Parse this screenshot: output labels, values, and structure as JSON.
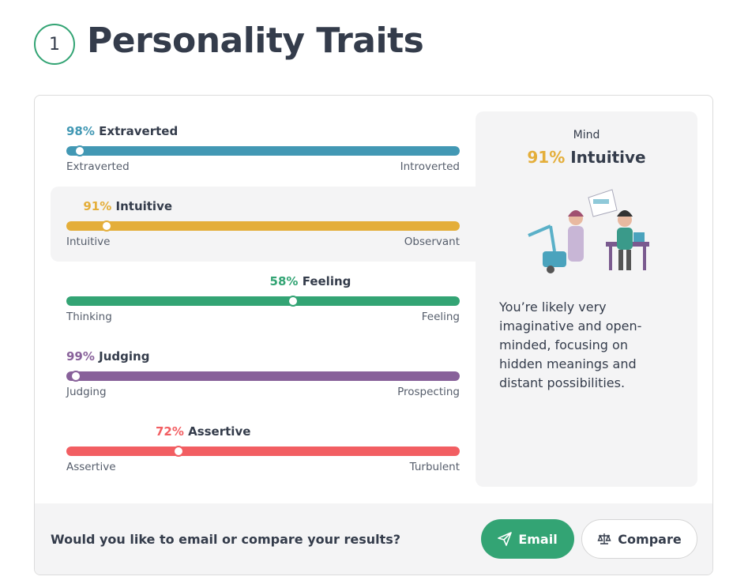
{
  "header": {
    "step": "1",
    "title": "Personality Traits"
  },
  "traits": [
    {
      "name": "Extraverted",
      "value": 98,
      "value_label": "98%",
      "color": "#4298b4",
      "left": "Extraverted",
      "right": "Introverted"
    },
    {
      "name": "Intuitive",
      "value": 91,
      "value_label": "91%",
      "color": "#e4ae3a",
      "left": "Intuitive",
      "right": "Observant"
    },
    {
      "name": "Feeling",
      "value": 58,
      "value_label": "58%",
      "color": "#33a474",
      "left": "Thinking",
      "right": "Feeling"
    },
    {
      "name": "Judging",
      "value": 99,
      "value_label": "99%",
      "color": "#88619a",
      "left": "Judging",
      "right": "Prospecting"
    },
    {
      "name": "Assertive",
      "value": 72,
      "value_label": "72%",
      "color": "#f25e62",
      "left": "Assertive",
      "right": "Turbulent"
    }
  ],
  "panel": {
    "heading": "Mind",
    "description": "You’re likely very imaginative and open-minded, focusing on hidden meanings and distant possibilities."
  },
  "footer": {
    "question": "Would you like to email or compare your results?",
    "email": "Email",
    "compare": "Compare"
  }
}
